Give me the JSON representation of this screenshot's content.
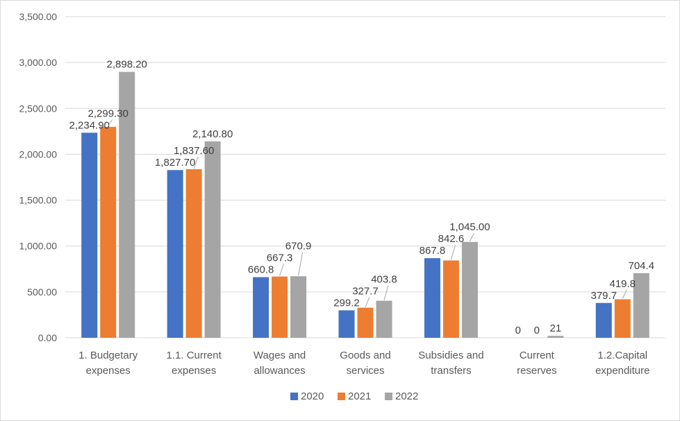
{
  "chart_data": {
    "type": "bar",
    "title": "",
    "xlabel": "",
    "ylabel": "",
    "ylim": [
      0,
      3500
    ],
    "yticks": [
      0,
      500,
      1000,
      1500,
      2000,
      2500,
      3000,
      3500
    ],
    "ytick_labels": [
      "0.00",
      "500.00",
      "1,000.00",
      "1,500.00",
      "2,000.00",
      "2,500.00",
      "3,000.00",
      "3,500.00"
    ],
    "grid": true,
    "legend_position": "bottom",
    "categories": [
      [
        "1. Budgetary",
        "expenses"
      ],
      [
        "1.1. Current",
        "expenses"
      ],
      [
        "Wages and",
        "allowances"
      ],
      [
        "Goods and",
        "services"
      ],
      [
        "Subsidies and",
        "transfers"
      ],
      [
        "Current",
        "reserves"
      ],
      [
        "1.2.Capital",
        "expenditure"
      ]
    ],
    "series": [
      {
        "name": "2020",
        "color": "#4472C4",
        "values": [
          2234.9,
          1827.7,
          660.8,
          299.2,
          867.8,
          0,
          379.7
        ],
        "labels": [
          "2,234.90",
          "1,827.70",
          "660.8",
          "299.2",
          "867.8",
          "0",
          "379.7"
        ]
      },
      {
        "name": "2021",
        "color": "#ED7D31",
        "values": [
          2299.3,
          1837.6,
          667.3,
          327.7,
          842.6,
          0,
          419.8
        ],
        "labels": [
          "2,299.30",
          "1,837.60",
          "667.3",
          "327.7",
          "842.6",
          "0",
          "419.8"
        ]
      },
      {
        "name": "2022",
        "color": "#A5A5A5",
        "values": [
          2898.2,
          2140.8,
          670.9,
          403.8,
          1045.0,
          21,
          704.4
        ],
        "labels": [
          "2,898.20",
          "2,140.80",
          "670.9",
          "403.8",
          "1,045.00",
          "21",
          "704.4"
        ]
      }
    ]
  }
}
